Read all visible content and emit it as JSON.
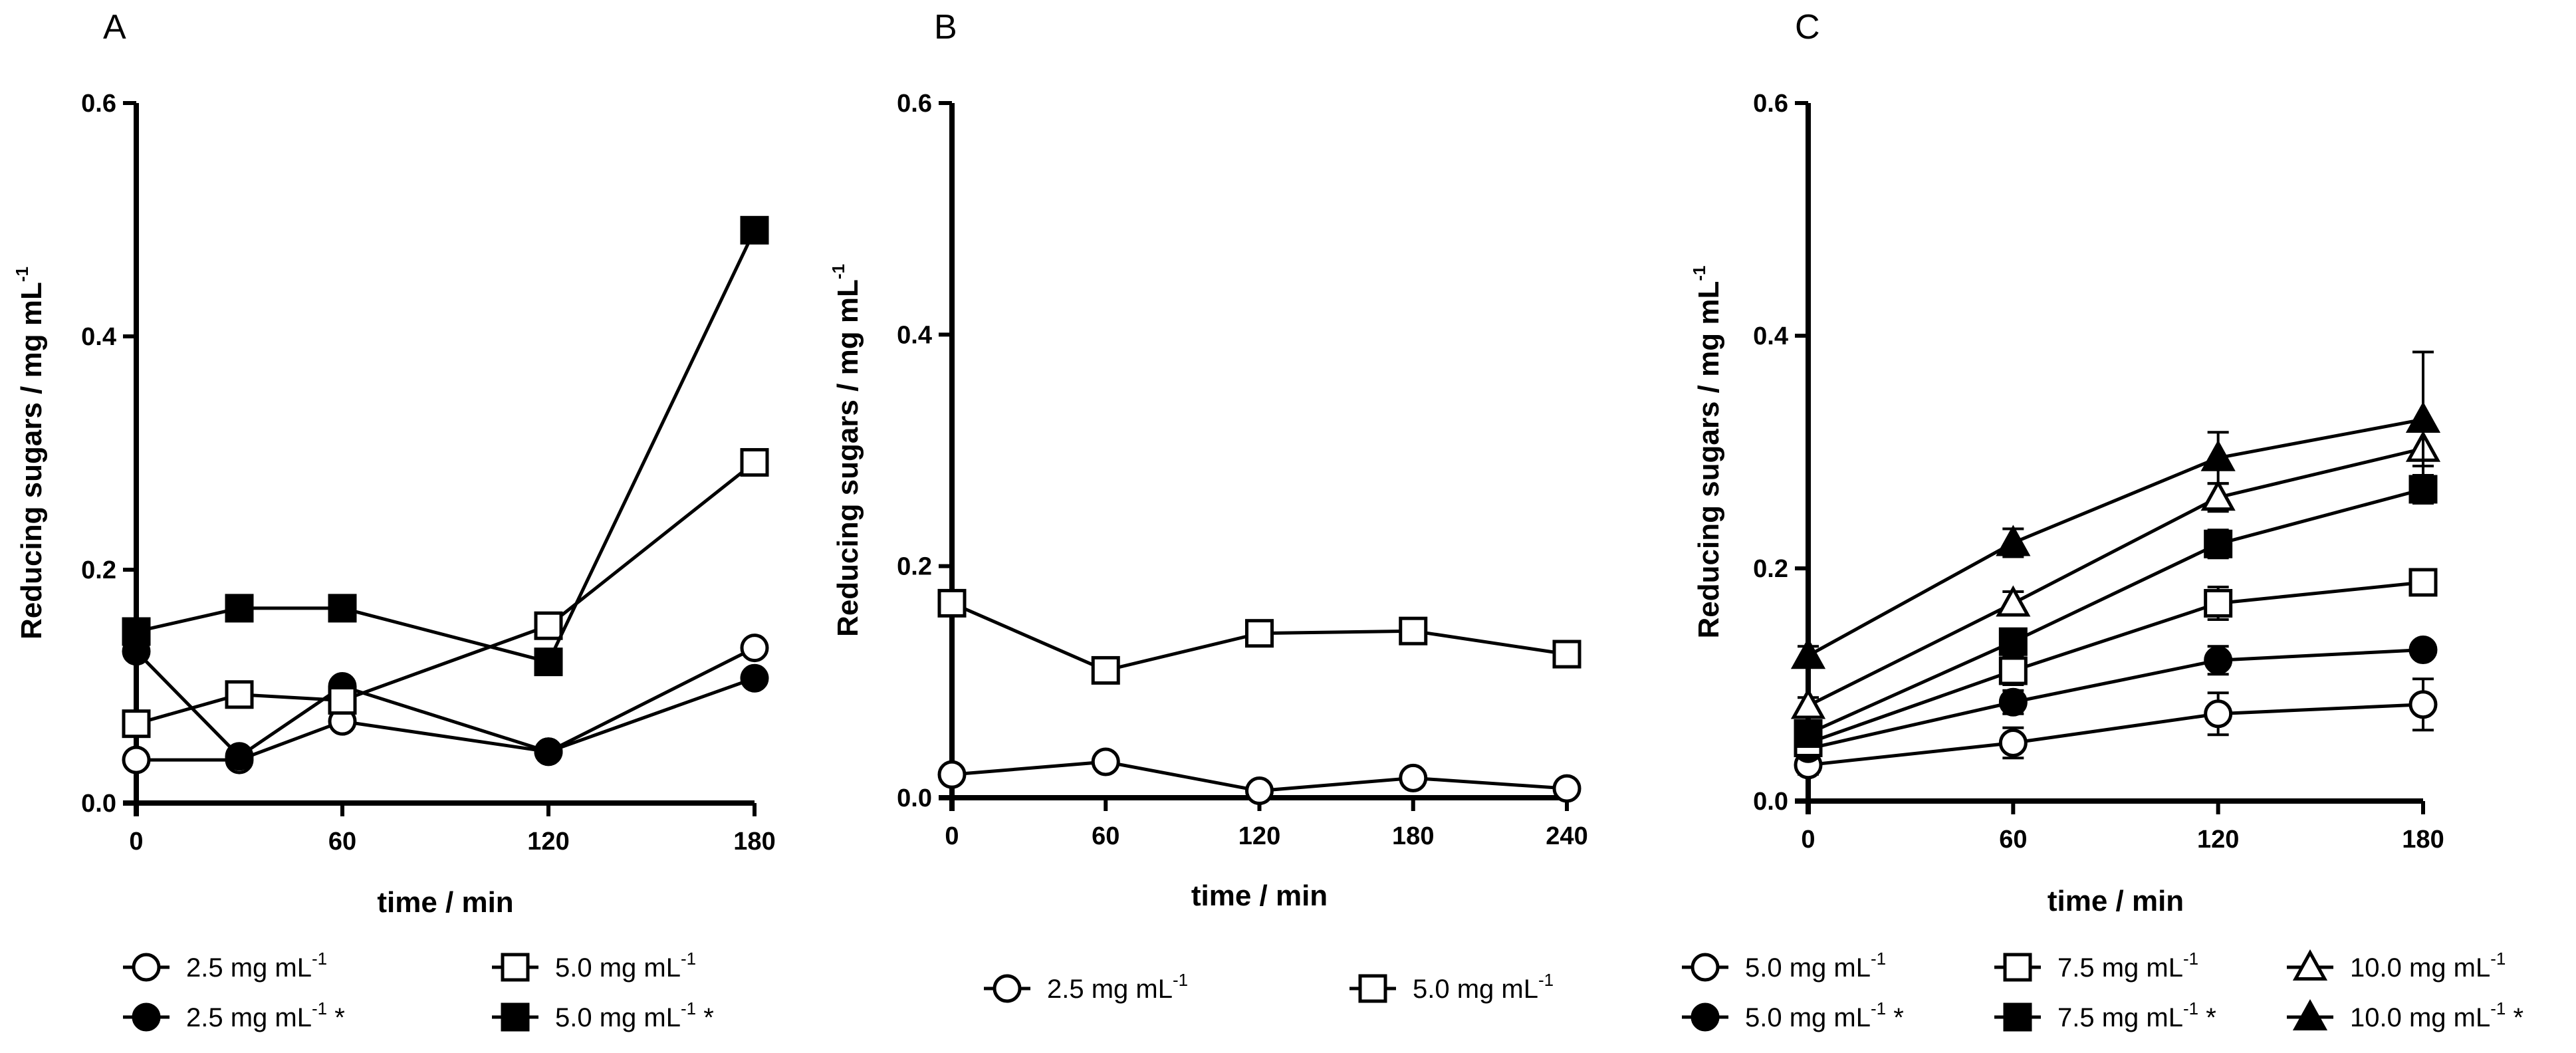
{
  "chart_data": [
    {
      "panel_label": "A",
      "type": "line",
      "xlabel": "time / min",
      "ylabel": "Reducing sugars / mg mL",
      "ylabel_sup": "-1",
      "xlim": [
        0,
        180
      ],
      "ylim": [
        0,
        0.6
      ],
      "xticks": [
        0,
        60,
        120,
        180
      ],
      "xtick_labels": [
        "0",
        "60",
        "120",
        "180"
      ],
      "yticks": [
        0,
        0.2,
        0.4,
        0.6
      ],
      "ytick_labels": [
        "0.0",
        "0.2",
        "0.4",
        "0.6"
      ],
      "series": [
        {
          "name": "2.5 mg mL",
          "sup": "-1",
          "suffix": "",
          "marker": "circle",
          "filled": false,
          "x": [
            0,
            30,
            60,
            120,
            180
          ],
          "values": [
            0.037,
            0.037,
            0.07,
            0.044,
            0.133
          ]
        },
        {
          "name": "2.5 mg mL",
          "sup": "-1",
          "suffix": " *",
          "marker": "circle",
          "filled": true,
          "x": [
            0,
            30,
            60,
            120,
            180
          ],
          "values": [
            0.13,
            0.04,
            0.1,
            0.044,
            0.107
          ]
        },
        {
          "name": "5.0 mg mL",
          "sup": "-1",
          "suffix": "",
          "marker": "square",
          "filled": false,
          "x": [
            0,
            30,
            60,
            120,
            180
          ],
          "values": [
            0.068,
            0.093,
            0.088,
            0.152,
            0.292
          ]
        },
        {
          "name": "5.0 mg mL",
          "sup": "-1",
          "suffix": " *",
          "marker": "square",
          "filled": true,
          "x": [
            0,
            30,
            60,
            120,
            180
          ],
          "values": [
            0.147,
            0.167,
            0.167,
            0.121,
            0.491
          ]
        }
      ],
      "legend": {
        "placement": "bottom",
        "columns": 2
      }
    },
    {
      "panel_label": "B",
      "type": "line",
      "xlabel": "time / min",
      "ylabel": "Reducing sugars / mg mL",
      "ylabel_sup": "-1",
      "xlim": [
        0,
        240
      ],
      "ylim": [
        0,
        0.6
      ],
      "xticks": [
        0,
        60,
        120,
        180,
        240
      ],
      "xtick_labels": [
        "0",
        "60",
        "120",
        "180",
        "240"
      ],
      "yticks": [
        0,
        0.2,
        0.4,
        0.6
      ],
      "ytick_labels": [
        "0.0",
        "0.2",
        "0.4",
        "0.6"
      ],
      "series": [
        {
          "name": "2.5 mg mL",
          "sup": "-1",
          "suffix": "",
          "marker": "circle",
          "filled": false,
          "x": [
            0,
            60,
            120,
            180,
            240
          ],
          "values": [
            0.02,
            0.031,
            0.006,
            0.017,
            0.008
          ]
        },
        {
          "name": "5.0 mg mL",
          "sup": "-1",
          "suffix": "",
          "marker": "square",
          "filled": false,
          "x": [
            0,
            60,
            120,
            180,
            240
          ],
          "values": [
            0.168,
            0.11,
            0.142,
            0.144,
            0.124
          ]
        }
      ],
      "legend": {
        "placement": "bottom",
        "columns": 2
      }
    },
    {
      "panel_label": "C",
      "type": "line",
      "xlabel": "time / min",
      "ylabel": "Reducing sugars / mg mL",
      "ylabel_sup": "-1",
      "xlim": [
        0,
        180
      ],
      "ylim": [
        0,
        0.6
      ],
      "xticks": [
        0,
        60,
        120,
        180
      ],
      "xtick_labels": [
        "0",
        "60",
        "120",
        "180"
      ],
      "yticks": [
        0,
        0.2,
        0.4,
        0.6
      ],
      "ytick_labels": [
        "0.0",
        "0.2",
        "0.4",
        "0.6"
      ],
      "series": [
        {
          "name": "5.0 mg mL",
          "sup": "-1",
          "suffix": "",
          "marker": "circle",
          "filled": false,
          "x": [
            0,
            60,
            120,
            180
          ],
          "values": [
            0.031,
            0.05,
            0.075,
            0.083
          ],
          "errors": [
            0.008,
            0.013,
            0.018,
            0.022
          ]
        },
        {
          "name": "5.0 mg mL",
          "sup": "-1",
          "suffix": " *",
          "marker": "circle",
          "filled": true,
          "x": [
            0,
            60,
            120,
            180
          ],
          "values": [
            0.045,
            0.085,
            0.121,
            0.13
          ],
          "errors": [
            0.006,
            0.01,
            0.012,
            0.007
          ]
        },
        {
          "name": "7.5 mg mL",
          "sup": "-1",
          "suffix": "",
          "marker": "square",
          "filled": false,
          "x": [
            0,
            60,
            120,
            180
          ],
          "values": [
            0.05,
            0.112,
            0.17,
            0.188
          ],
          "errors": [
            0.007,
            0.012,
            0.014,
            0.01
          ]
        },
        {
          "name": "7.5 mg mL",
          "sup": "-1",
          "suffix": " *",
          "marker": "square",
          "filled": true,
          "x": [
            0,
            60,
            120,
            180
          ],
          "values": [
            0.058,
            0.137,
            0.221,
            0.268
          ],
          "errors": [
            0.006,
            0.01,
            0.012,
            0.012
          ]
        },
        {
          "name": "10.0 mg mL",
          "sup": "-1",
          "suffix": "",
          "marker": "triangle",
          "filled": false,
          "x": [
            0,
            60,
            120,
            180
          ],
          "values": [
            0.082,
            0.17,
            0.261,
            0.303
          ],
          "errors": [
            0.007,
            0.01,
            0.012,
            0.015
          ]
        },
        {
          "name": "10.0 mg mL",
          "sup": "-1",
          "suffix": " *",
          "marker": "triangle",
          "filled": true,
          "x": [
            0,
            60,
            120,
            180
          ],
          "values": [
            0.125,
            0.222,
            0.295,
            0.328
          ],
          "errors": [
            0.008,
            0.012,
            0.022,
            0.058
          ]
        }
      ],
      "legend": {
        "placement": "bottom",
        "columns": 3
      }
    }
  ]
}
